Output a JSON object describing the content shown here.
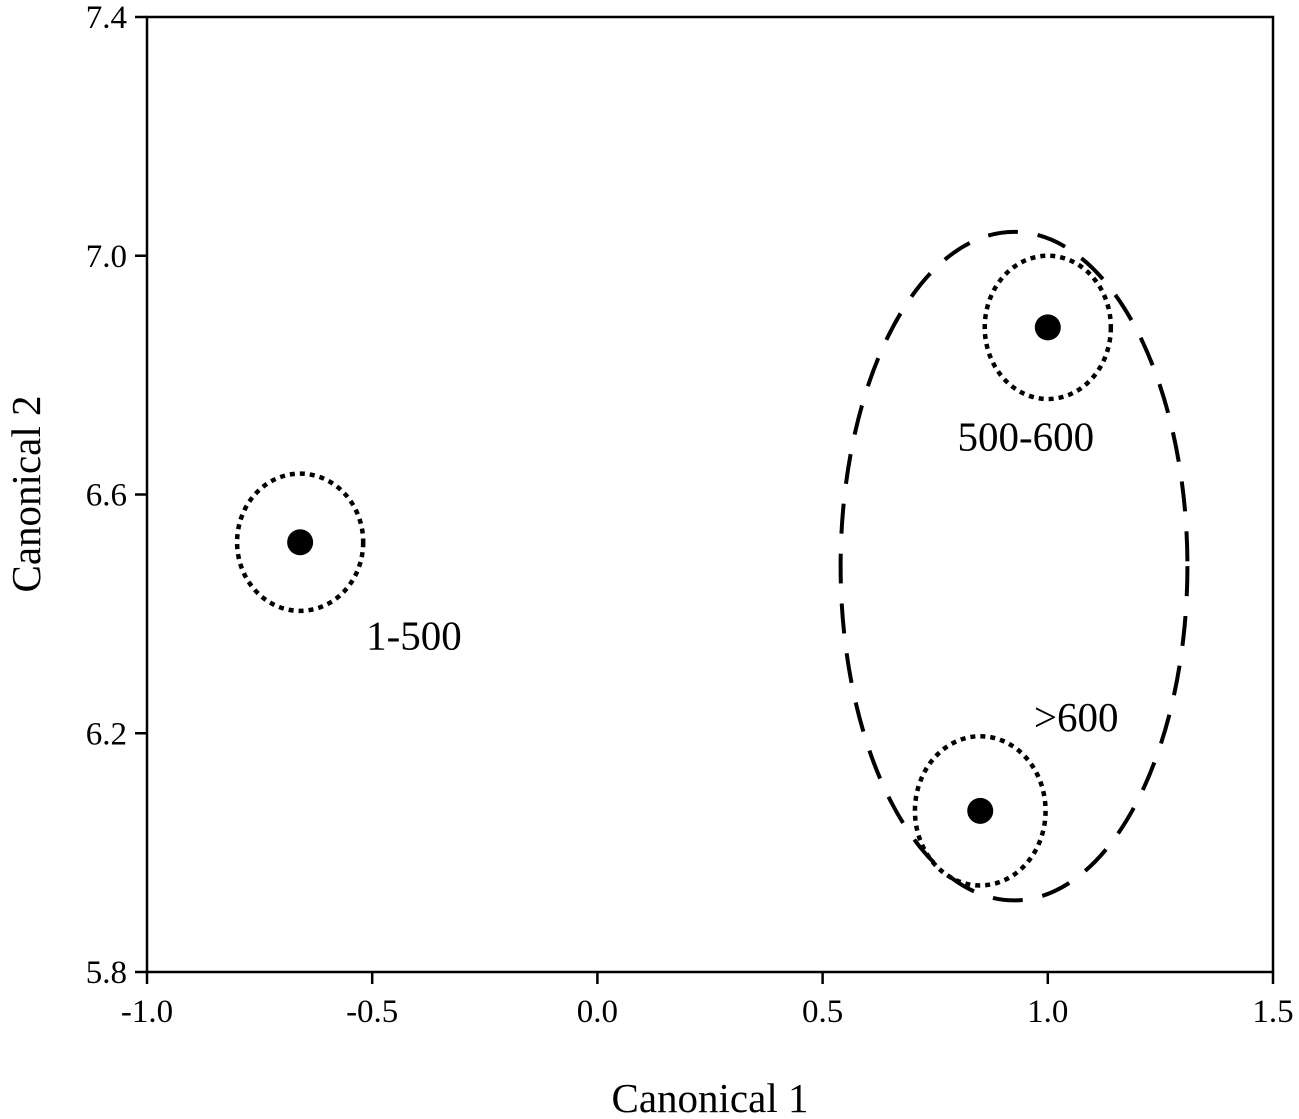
{
  "chart_data": {
    "type": "scatter",
    "title": "",
    "xlabel": "Canonical 1",
    "ylabel": "Canonical 2",
    "xlim": [
      -1.0,
      1.5
    ],
    "ylim": [
      5.8,
      7.4
    ],
    "grid": false,
    "xticks": [
      "-1.0",
      "-0.5",
      "0.0",
      "0.5",
      "1.0",
      "1.5"
    ],
    "yticks": [
      "5.8",
      "6.2",
      "6.6",
      "7.0",
      "7.4"
    ],
    "points": [
      {
        "label": "1-500",
        "x": -0.66,
        "y": 6.52
      },
      {
        "label": "500-600",
        "x": 1.0,
        "y": 6.88
      },
      {
        "label": ">600",
        "x": 0.85,
        "y": 6.07
      }
    ],
    "confidence_circles": [
      {
        "x": -0.66,
        "y": 6.52,
        "rx": 0.14,
        "ry": 0.115,
        "style": "dotted"
      },
      {
        "x": 1.0,
        "y": 6.88,
        "rx": 0.14,
        "ry": 0.12,
        "style": "dotted"
      },
      {
        "x": 0.85,
        "y": 6.07,
        "rx": 0.145,
        "ry": 0.125,
        "style": "dotted"
      }
    ],
    "cluster_ellipse": {
      "x": 0.925,
      "y": 6.48,
      "rx": 0.385,
      "ry": 0.56,
      "style": "dashed"
    },
    "colors": {
      "marker": "#000000",
      "axis": "#000000"
    }
  }
}
